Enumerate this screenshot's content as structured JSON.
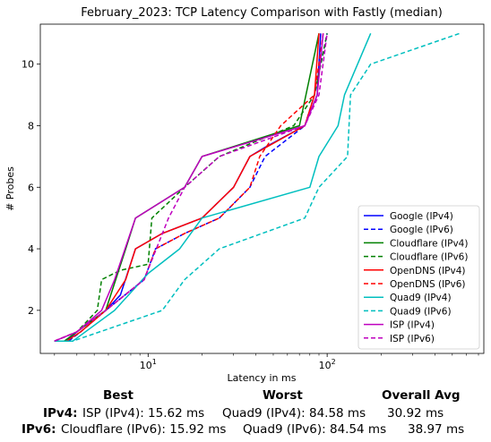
{
  "chart_data": {
    "type": "line",
    "title": "February_2023: TCP Latency Comparison with Fastly (median)",
    "xlabel": "Latency in ms",
    "ylabel": "# Probes",
    "xscale": "log",
    "xlim": [
      2.5,
      750
    ],
    "ylim": [
      0.6,
      11.3
    ],
    "xticks": [
      {
        "v": 10,
        "base": "10",
        "exp": "1"
      },
      {
        "v": 100,
        "base": "10",
        "exp": "2"
      }
    ],
    "yticks": [
      2,
      4,
      6,
      8,
      10
    ],
    "grid": false,
    "legend_position": "lower-right",
    "series": [
      {
        "name": "Google (IPv4)",
        "color": "#0000ff",
        "dash": "solid",
        "points": [
          [
            3.0,
            1
          ],
          [
            3.5,
            1
          ],
          [
            4.0,
            1.3
          ],
          [
            5.8,
            2
          ],
          [
            7.0,
            2.5
          ],
          [
            8.5,
            4
          ],
          [
            12,
            4.5
          ],
          [
            20,
            5
          ],
          [
            30,
            6
          ],
          [
            37,
            7
          ],
          [
            45,
            7.3
          ],
          [
            75,
            8
          ],
          [
            88,
            9
          ],
          [
            92,
            11
          ]
        ]
      },
      {
        "name": "Google (IPv6)",
        "color": "#0000ff",
        "dash": "dashed",
        "points": [
          [
            3.0,
            1
          ],
          [
            3.6,
            1
          ],
          [
            4.2,
            1.3
          ],
          [
            5.8,
            2
          ],
          [
            9.5,
            3
          ],
          [
            11,
            4
          ],
          [
            16,
            4.5
          ],
          [
            25,
            5
          ],
          [
            37,
            6
          ],
          [
            45,
            7
          ],
          [
            75,
            8
          ],
          [
            85,
            9
          ],
          [
            100,
            11
          ]
        ]
      },
      {
        "name": "Cloudflare (IPv4)",
        "color": "#008000",
        "dash": "solid",
        "points": [
          [
            3.0,
            1
          ],
          [
            3.4,
            1
          ],
          [
            4.0,
            1.3
          ],
          [
            5.8,
            2
          ],
          [
            7.5,
            4
          ],
          [
            8.5,
            5
          ],
          [
            16,
            6
          ],
          [
            20,
            7
          ],
          [
            70,
            8
          ],
          [
            90,
            11
          ]
        ]
      },
      {
        "name": "Cloudflare (IPv6)",
        "color": "#008000",
        "dash": "dashed",
        "points": [
          [
            3.0,
            1
          ],
          [
            4.0,
            1.3
          ],
          [
            5.2,
            2
          ],
          [
            5.5,
            3
          ],
          [
            7.0,
            3.3
          ],
          [
            10,
            3.5
          ],
          [
            10.5,
            5
          ],
          [
            16,
            6
          ],
          [
            25,
            7
          ],
          [
            65,
            8
          ],
          [
            85,
            9
          ],
          [
            100,
            11
          ]
        ]
      },
      {
        "name": "OpenDNS (IPv4)",
        "color": "#ff0000",
        "dash": "solid",
        "points": [
          [
            3.0,
            1
          ],
          [
            3.5,
            1
          ],
          [
            4.2,
            1.3
          ],
          [
            5.8,
            2
          ],
          [
            7.5,
            3
          ],
          [
            8.5,
            4
          ],
          [
            12,
            4.5
          ],
          [
            20,
            5
          ],
          [
            30,
            6
          ],
          [
            37,
            7
          ],
          [
            75,
            8
          ],
          [
            85,
            9
          ],
          [
            90,
            11
          ]
        ]
      },
      {
        "name": "OpenDNS (IPv6)",
        "color": "#ff0000",
        "dash": "dashed",
        "points": [
          [
            3.0,
            1
          ],
          [
            4.0,
            1.3
          ],
          [
            5.8,
            2
          ],
          [
            9.5,
            3
          ],
          [
            11,
            4
          ],
          [
            16,
            4.5
          ],
          [
            25,
            5
          ],
          [
            37,
            6
          ],
          [
            42,
            7
          ],
          [
            55,
            8
          ],
          [
            85,
            9
          ],
          [
            95,
            11
          ]
        ]
      },
      {
        "name": "Quad9 (IPv4)",
        "color": "#00bfbf",
        "dash": "solid",
        "points": [
          [
            3.0,
            1
          ],
          [
            3.8,
            1
          ],
          [
            6.5,
            2
          ],
          [
            10,
            3.2
          ],
          [
            15,
            4
          ],
          [
            20,
            5
          ],
          [
            80,
            6
          ],
          [
            90,
            7
          ],
          [
            115,
            8
          ],
          [
            125,
            9
          ],
          [
            175,
            11
          ]
        ]
      },
      {
        "name": "Quad9 (IPv6)",
        "color": "#00bfbf",
        "dash": "dashed",
        "points": [
          [
            3.0,
            1
          ],
          [
            3.8,
            1
          ],
          [
            12,
            2
          ],
          [
            16,
            3
          ],
          [
            25,
            4
          ],
          [
            75,
            5
          ],
          [
            90,
            6
          ],
          [
            130,
            7
          ],
          [
            135,
            9
          ],
          [
            175,
            10
          ],
          [
            550,
            11
          ]
        ]
      },
      {
        "name": "ISP (IPv4)",
        "color": "#bf00bf",
        "dash": "solid",
        "points": [
          [
            3.0,
            1
          ],
          [
            4.0,
            1.3
          ],
          [
            5.5,
            2
          ],
          [
            6.5,
            3
          ],
          [
            8.5,
            5
          ],
          [
            16,
            6
          ],
          [
            20,
            7
          ],
          [
            75,
            8
          ],
          [
            88,
            9
          ],
          [
            95,
            11
          ]
        ]
      },
      {
        "name": "ISP (IPv6)",
        "color": "#bf00bf",
        "dash": "dashed",
        "points": [
          [
            3.0,
            1
          ],
          [
            4.0,
            1.3
          ],
          [
            5.8,
            2
          ],
          [
            9.5,
            3
          ],
          [
            13,
            5
          ],
          [
            16,
            6
          ],
          [
            25,
            7
          ],
          [
            75,
            8
          ],
          [
            90,
            9
          ],
          [
            100,
            11
          ]
        ]
      }
    ]
  },
  "summary": {
    "headers": {
      "best": "Best",
      "worst": "Worst",
      "avg": "Overall Avg"
    },
    "rows": [
      {
        "label": "IPv4:",
        "best": "ISP (IPv4): 15.62 ms",
        "worst": "Quad9 (IPv4): 84.58 ms",
        "avg": "30.92 ms"
      },
      {
        "label": "IPv6:",
        "best": "Cloudflare (IPv6): 15.92 ms",
        "worst": "Quad9 (IPv6): 84.54 ms",
        "avg": "38.97 ms"
      }
    ]
  }
}
